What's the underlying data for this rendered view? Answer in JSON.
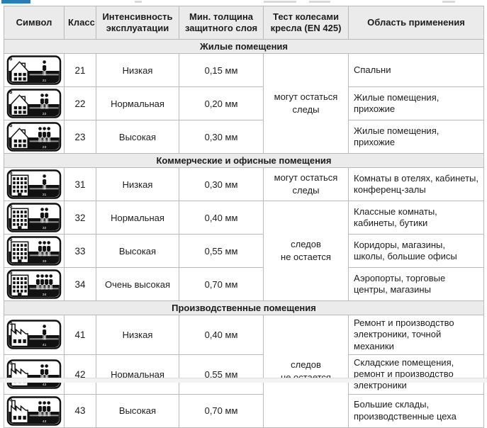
{
  "page": {
    "colors": {
      "header_bg": "#ebebeb",
      "border": "#b9b9b9",
      "text": "#1c1c1c",
      "accent_fragment": "#2e7cb0",
      "pictogram": "#111111"
    }
  },
  "table": {
    "headers": [
      "Символ",
      "Класс",
      "Интенсивность\nэксплуатации",
      "Мин. толщина\nзащитного слоя",
      "Тест колесами\nкресла (EN 425)",
      "Область применения"
    ],
    "sections": [
      {
        "title": "Жилые помещения",
        "test_groups": [
          {
            "text": "могут остаться\nследы",
            "span": 3
          }
        ],
        "rows": [
          {
            "symbol": {
              "building": "house",
              "people": 1,
              "label": "21"
            },
            "class": "21",
            "intensity": "Низкая",
            "thickness": "0,15 мм",
            "application": "Спальни"
          },
          {
            "symbol": {
              "building": "house",
              "people": 2,
              "label": "22"
            },
            "class": "22",
            "intensity": "Нормальная",
            "thickness": "0,20 мм",
            "application": "Жилые помещения, прихожие"
          },
          {
            "symbol": {
              "building": "house",
              "people": 3,
              "label": "23"
            },
            "class": "23",
            "intensity": "Высокая",
            "thickness": "0,30 мм",
            "application": "Жилые помещения, прихожие"
          }
        ]
      },
      {
        "title": "Коммерческие и офисные помещения",
        "test_groups": [
          {
            "text": "могут остаться\nследы",
            "span": 1
          },
          {
            "text": "следов\nне остается",
            "span": 3
          }
        ],
        "rows": [
          {
            "symbol": {
              "building": "office",
              "people": 1,
              "label": "31"
            },
            "class": "31",
            "intensity": "Низкая",
            "thickness": "0,30 мм",
            "application": "Комнаты в отелях, кабинеты, конференц-залы"
          },
          {
            "symbol": {
              "building": "office",
              "people": 2,
              "label": "32"
            },
            "class": "32",
            "intensity": "Нормальная",
            "thickness": "0,40 мм",
            "application": "Классные комнаты, кабинеты, бутики"
          },
          {
            "symbol": {
              "building": "office",
              "people": 3,
              "label": "33"
            },
            "class": "33",
            "intensity": "Высокая",
            "thickness": "0,55 мм",
            "application": "Коридоры, магазины, школы, большие офисы"
          },
          {
            "symbol": {
              "building": "office",
              "people": 4,
              "label": "34"
            },
            "class": "34",
            "intensity": "Очень высокая",
            "thickness": "0,70 мм",
            "application": "Аэропорты, торговые центры, магазины"
          }
        ]
      },
      {
        "title": "Производственные помещения",
        "test_groups": [
          {
            "text": "следов\nне остается",
            "span": 3
          }
        ],
        "rows": [
          {
            "symbol": {
              "building": "factory",
              "people": 1,
              "label": "41"
            },
            "class": "41",
            "intensity": "Низкая",
            "thickness": "0,40 мм",
            "application": "Ремонт и производство электроники, точной механики"
          },
          {
            "symbol": {
              "building": "factory",
              "people": 2,
              "label": "42"
            },
            "class": "42",
            "intensity": "Нормальная",
            "thickness": "0,55 мм",
            "application": "Складские помещения, ремонт и производство электроники"
          },
          {
            "symbol": {
              "building": "factory",
              "people": 3,
              "label": "43"
            },
            "class": "43",
            "intensity": "Высокая",
            "thickness": "0,70 мм",
            "application": "Большие склады, производственные цеха"
          }
        ]
      }
    ]
  }
}
